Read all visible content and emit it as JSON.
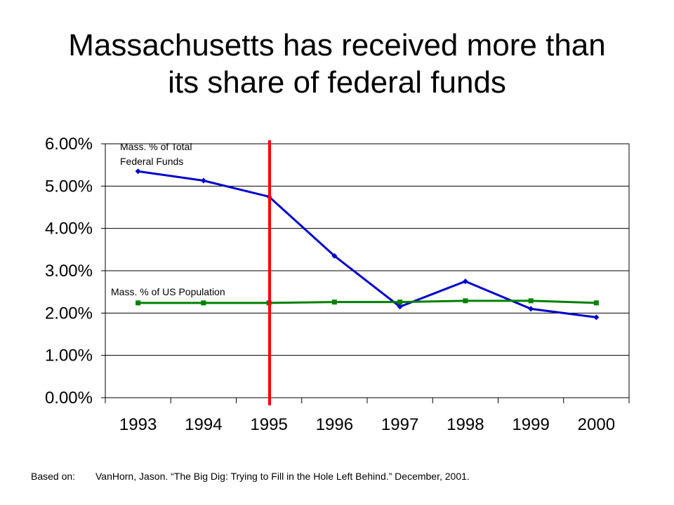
{
  "title": {
    "line1": "Massachusetts has received more than",
    "line2": "its share of federal funds"
  },
  "footer": {
    "label": "Based on:",
    "citation": "VanHorn, Jason.  “The Big Dig: Trying to Fill in the Hole Left Behind.” December, 2001."
  },
  "chart_data": {
    "type": "line",
    "categories": [
      "1993",
      "1994",
      "1995",
      "1996",
      "1997",
      "1998",
      "1999",
      "2000"
    ],
    "y_tick_labels": [
      "0.00%",
      "1.00%",
      "2.00%",
      "3.00%",
      "4.00%",
      "5.00%",
      "6.00%"
    ],
    "ylim": [
      0,
      6
    ],
    "grid": true,
    "series": [
      {
        "name": "Mass. % of Total Federal Funds",
        "label_lines": [
          "Mass. % of Total",
          "Federal Funds"
        ],
        "color": "#0000CC",
        "values": [
          5.35,
          5.13,
          4.75,
          3.35,
          2.15,
          2.75,
          2.1,
          1.9
        ]
      },
      {
        "name": "Mass. % of US Population",
        "label_lines": [
          "Mass. % of US Population"
        ],
        "color": "#008000",
        "values": [
          2.24,
          2.24,
          2.24,
          2.26,
          2.26,
          2.29,
          2.29,
          2.24
        ]
      }
    ],
    "marker_line": {
      "position": "between 1994 and 1995",
      "color": "#FF0000"
    }
  }
}
